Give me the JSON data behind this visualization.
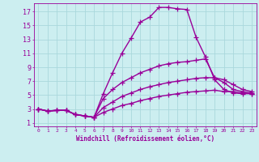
{
  "background_color": "#cceef0",
  "grid_color": "#aad8dc",
  "line_color": "#990099",
  "xlabel": "Windchill (Refroidissement éolien,°C)",
  "ylabel_ticks": [
    1,
    3,
    5,
    7,
    9,
    11,
    13,
    15,
    17
  ],
  "xlim": [
    -0.5,
    23.5
  ],
  "ylim": [
    0.5,
    18.2
  ],
  "line1_x": [
    0,
    1,
    2,
    3,
    4,
    5,
    6,
    7,
    8,
    9,
    10,
    11,
    12,
    13,
    14,
    15,
    16,
    17,
    18,
    19,
    20,
    21,
    22,
    23
  ],
  "line1_y": [
    3,
    2.7,
    2.8,
    2.8,
    2.2,
    2.0,
    1.8,
    5.2,
    8.2,
    11.0,
    13.2,
    15.5,
    16.2,
    17.6,
    17.6,
    17.4,
    17.3,
    13.3,
    10.5,
    7.2,
    5.8,
    5.3,
    5.2,
    5.2
  ],
  "line2_x": [
    0,
    1,
    2,
    3,
    4,
    5,
    6,
    7,
    8,
    9,
    10,
    11,
    12,
    13,
    14,
    15,
    16,
    17,
    18,
    19,
    20,
    21,
    22,
    23
  ],
  "line2_y": [
    3,
    2.7,
    2.8,
    2.8,
    2.2,
    2.0,
    1.8,
    4.5,
    5.8,
    6.8,
    7.5,
    8.2,
    8.7,
    9.2,
    9.5,
    9.7,
    9.8,
    10.0,
    10.2,
    7.5,
    6.8,
    5.8,
    5.5,
    5.3
  ],
  "line3_x": [
    0,
    1,
    2,
    3,
    4,
    5,
    6,
    7,
    8,
    9,
    10,
    11,
    12,
    13,
    14,
    15,
    16,
    17,
    18,
    19,
    20,
    21,
    22,
    23
  ],
  "line3_y": [
    3,
    2.7,
    2.8,
    2.8,
    2.2,
    2.0,
    1.8,
    3.2,
    4.0,
    4.8,
    5.3,
    5.8,
    6.2,
    6.5,
    6.8,
    7.0,
    7.2,
    7.4,
    7.5,
    7.5,
    7.2,
    6.5,
    5.8,
    5.5
  ],
  "line4_x": [
    0,
    1,
    2,
    3,
    4,
    5,
    6,
    7,
    8,
    9,
    10,
    11,
    12,
    13,
    14,
    15,
    16,
    17,
    18,
    19,
    20,
    21,
    22,
    23
  ],
  "line4_y": [
    3,
    2.7,
    2.8,
    2.8,
    2.2,
    2.0,
    1.8,
    2.5,
    3.0,
    3.5,
    3.8,
    4.2,
    4.5,
    4.8,
    5.0,
    5.2,
    5.4,
    5.5,
    5.6,
    5.7,
    5.5,
    5.5,
    5.3,
    5.2
  ],
  "xtick_labels": [
    "0",
    "1",
    "2",
    "3",
    "4",
    "5",
    "6",
    "7",
    "8",
    "9",
    "10",
    "11",
    "12",
    "13",
    "14",
    "15",
    "16",
    "17",
    "18",
    "19",
    "20",
    "21",
    "22",
    "23"
  ],
  "marker": "+",
  "markersize": 4,
  "linewidth": 1.0
}
